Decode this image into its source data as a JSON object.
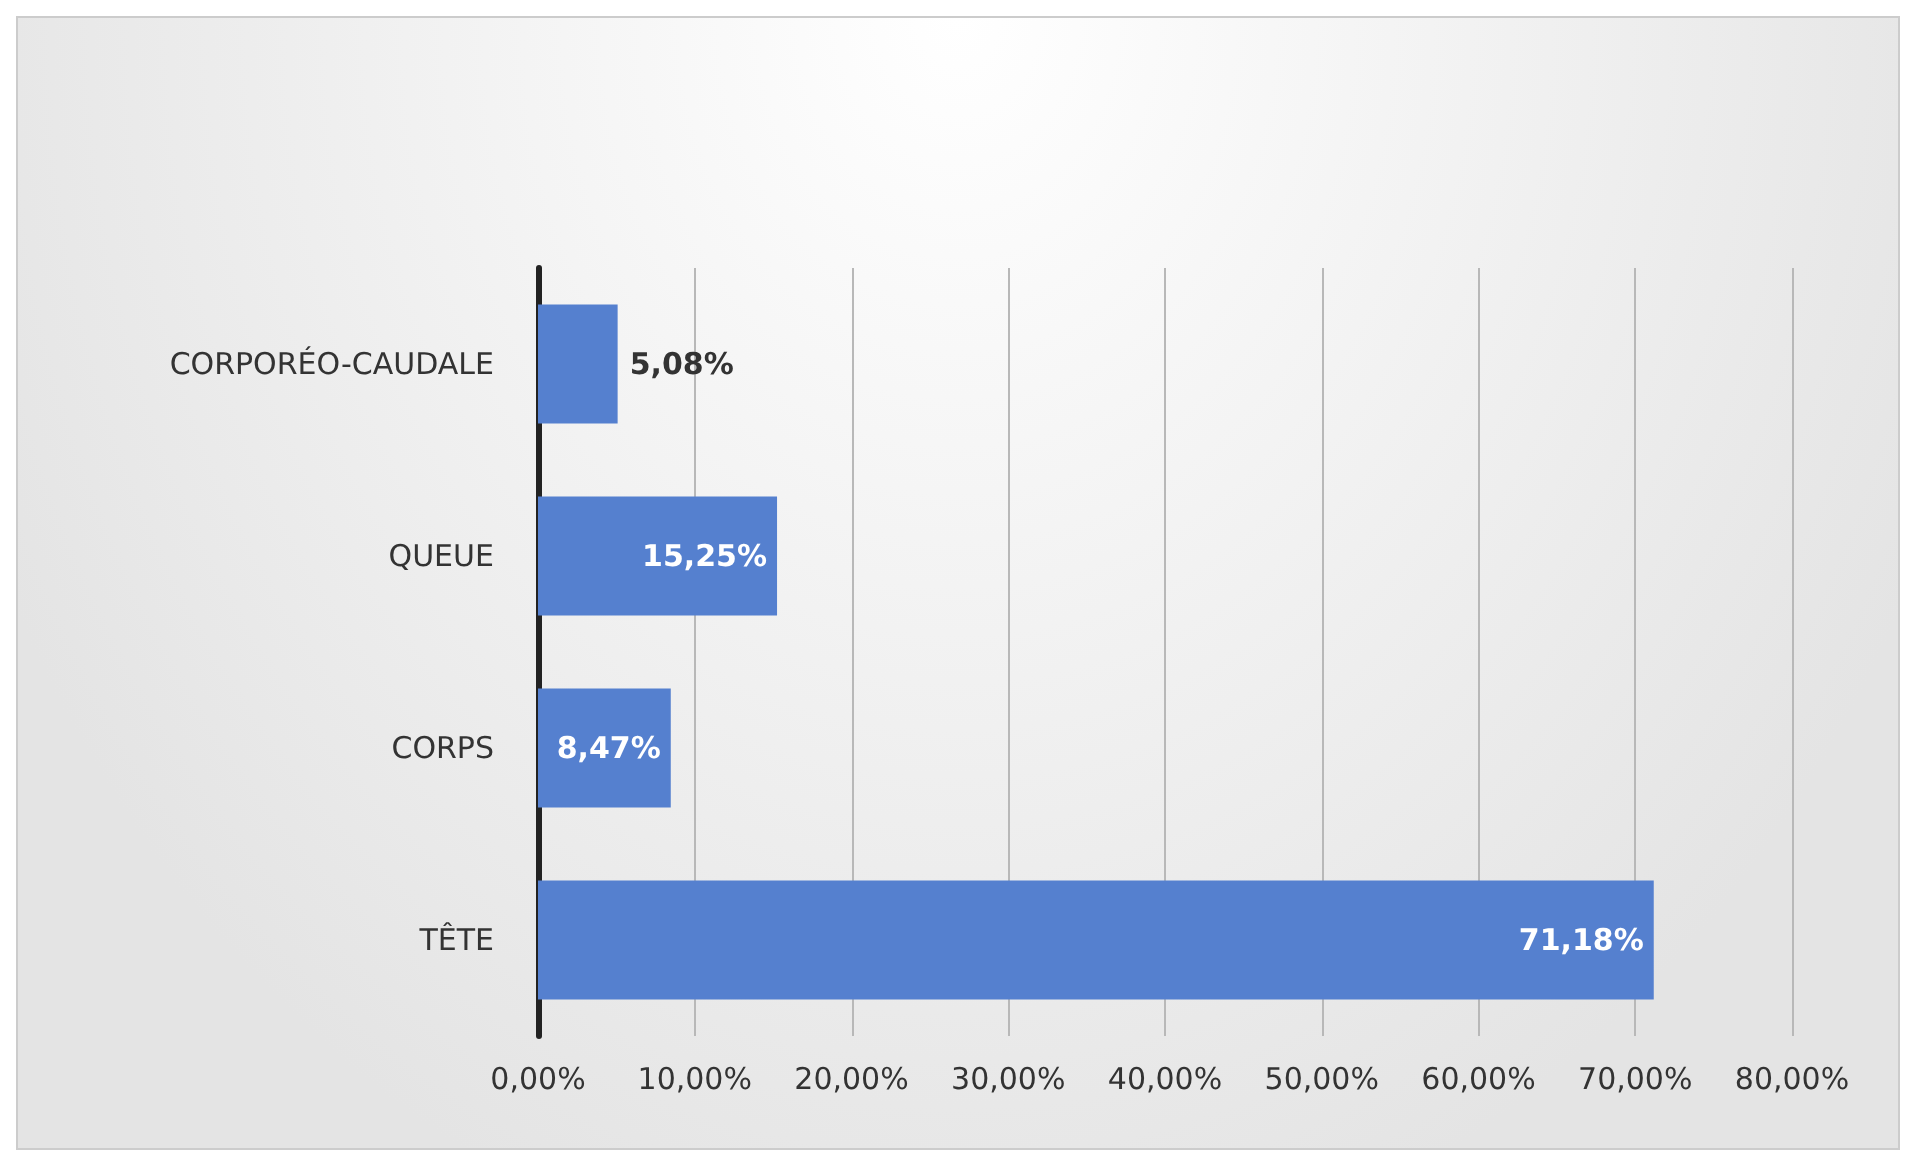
{
  "chart_data": {
    "type": "bar",
    "orientation": "horizontal",
    "categories": [
      "CORPORÉO-CAUDALE",
      "QUEUE",
      "CORPS",
      "TÊTE"
    ],
    "values": [
      5.08,
      15.25,
      8.47,
      71.18
    ],
    "value_labels": [
      "5,08%",
      "15,25%",
      "8,47%",
      "71,18%"
    ],
    "color": "#5580cf",
    "xlim": [
      0,
      80
    ],
    "xticks": [
      {
        "value": 0,
        "label": "0,00%"
      },
      {
        "value": 10,
        "label": "10,00%"
      },
      {
        "value": 20,
        "label": "20,00%"
      },
      {
        "value": 30,
        "label": "30,00%"
      },
      {
        "value": 40,
        "label": "40,00%"
      },
      {
        "value": 50,
        "label": "50,00%"
      },
      {
        "value": 60,
        "label": "60,00%"
      },
      {
        "value": 70,
        "label": "70,00%"
      },
      {
        "value": 80,
        "label": "80,00%"
      }
    ],
    "grid": "x"
  }
}
